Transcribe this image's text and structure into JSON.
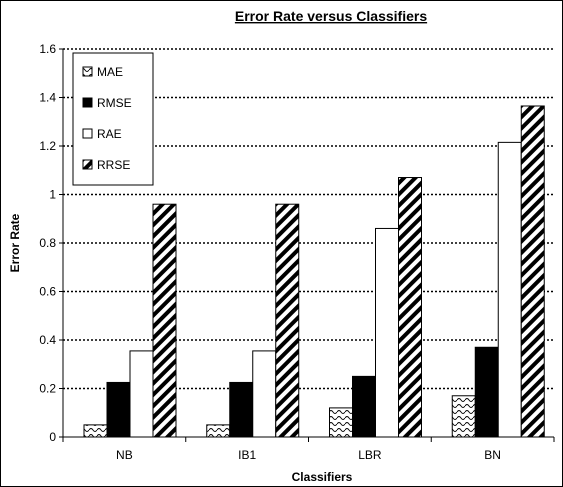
{
  "chart_data": {
    "type": "bar",
    "title": "Error Rate versus Classifiers",
    "xlabel": "Classifiers",
    "ylabel": "Error Rate",
    "categories": [
      "NB",
      "IB1",
      "LBR",
      "BN"
    ],
    "ylim": [
      0,
      1.6
    ],
    "yticks": [
      "0",
      "0.2",
      "0.4",
      "0.6",
      "0.8",
      "1",
      "1.2",
      "1.4",
      "1.6"
    ],
    "grid": true,
    "legend_position": "top-left",
    "series": [
      {
        "name": "MAE",
        "values": [
          0.05,
          0.05,
          0.12,
          0.17
        ],
        "pattern": "wave"
      },
      {
        "name": "RMSE",
        "values": [
          0.225,
          0.225,
          0.25,
          0.37
        ],
        "pattern": "solid-black"
      },
      {
        "name": "RAE",
        "values": [
          0.355,
          0.355,
          0.86,
          1.215
        ],
        "pattern": "solid-white"
      },
      {
        "name": "RRSE",
        "values": [
          0.96,
          0.96,
          1.07,
          1.365
        ],
        "pattern": "diagonal"
      }
    ]
  }
}
